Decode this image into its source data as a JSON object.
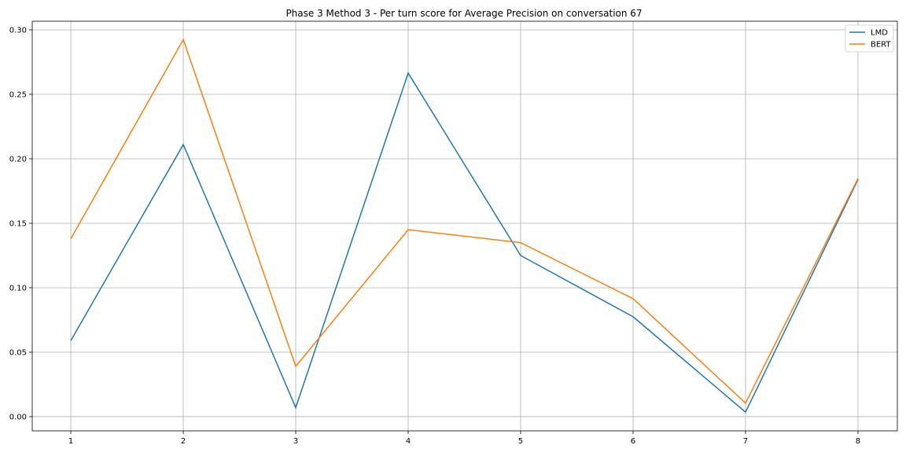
{
  "chart_data": {
    "type": "line",
    "title": "Phase 3 Method 3 - Per turn score for Average Precision on conversation 67",
    "xlabel": "",
    "ylabel": "",
    "x": [
      1,
      2,
      3,
      4,
      5,
      6,
      7,
      8
    ],
    "xticks": [
      "1",
      "2",
      "3",
      "4",
      "5",
      "6",
      "7",
      "8"
    ],
    "yticks": [
      "0.00",
      "0.05",
      "0.10",
      "0.15",
      "0.20",
      "0.25",
      "0.30"
    ],
    "ytick_values": [
      0,
      0.05,
      0.1,
      0.15,
      0.2,
      0.25,
      0.3
    ],
    "xlim": [
      0.657,
      8.35
    ],
    "ylim": [
      -0.011,
      0.3067
    ],
    "grid": true,
    "legend_placement": "top-right",
    "series": [
      {
        "name": "LMD",
        "color": "#1f77b4",
        "values": [
          0.059,
          0.211,
          0.007,
          0.2665,
          0.125,
          0.0775,
          0.0035,
          0.184
        ]
      },
      {
        "name": "BERT",
        "color": "#ff7f0e",
        "values": [
          0.138,
          0.2925,
          0.039,
          0.145,
          0.135,
          0.0915,
          0.0105,
          0.1848
        ]
      }
    ]
  }
}
